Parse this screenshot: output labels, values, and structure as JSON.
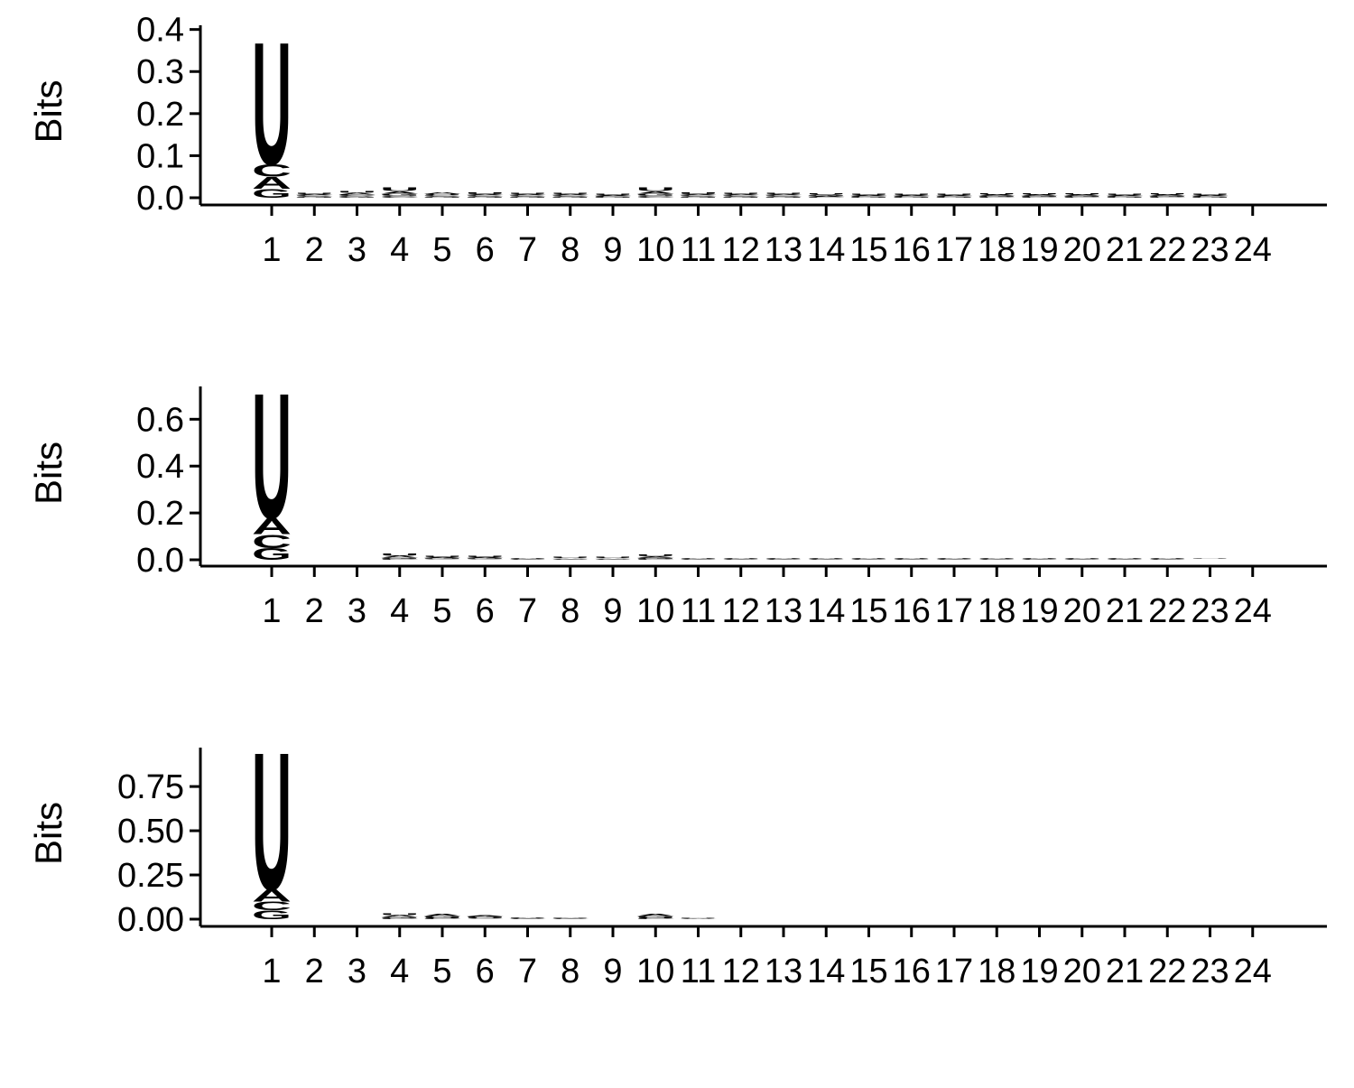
{
  "colors": {
    "A": "#109648",
    "C": "#255C99",
    "G": "#F7B32B",
    "U": "#D62839"
  },
  "chart_data": [
    {
      "type": "sequence-logo",
      "ylabel": "Bits",
      "ylim": [
        0,
        0.41
      ],
      "yticks": [
        0.0,
        0.1,
        0.2,
        0.3,
        0.4
      ],
      "ytick_labels": [
        "0.0",
        "0.1",
        "0.2",
        "0.3",
        "0.4"
      ],
      "positions": [
        "1",
        "2",
        "3",
        "4",
        "5",
        "6",
        "7",
        "8",
        "9",
        "10",
        "11",
        "12",
        "13",
        "14",
        "15",
        "16",
        "17",
        "18",
        "19",
        "20",
        "21",
        "22",
        "23",
        "24"
      ],
      "heights": [
        {
          "G": 0.022,
          "C": 0.03,
          "A": 0.028,
          "U": 0.3
        },
        {
          "G": 0.003,
          "C": 0.003,
          "A": 0.003,
          "U": 0.003
        },
        {
          "G": 0.004,
          "C": 0.004,
          "A": 0.004,
          "U": 0.004
        },
        {
          "G": 0.006,
          "C": 0.004,
          "A": 0.006,
          "U": 0.008
        },
        {
          "G": 0.003,
          "C": 0.003,
          "A": 0.004,
          "U": 0.003
        },
        {
          "G": 0.003,
          "C": 0.003,
          "A": 0.003,
          "U": 0.004
        },
        {
          "G": 0.003,
          "C": 0.003,
          "A": 0.003,
          "U": 0.003
        },
        {
          "G": 0.003,
          "C": 0.003,
          "A": 0.003,
          "U": 0.003
        },
        {
          "G": 0.002,
          "C": 0.002,
          "A": 0.002,
          "U": 0.002
        },
        {
          "G": 0.006,
          "C": 0.004,
          "A": 0.006,
          "U": 0.008
        },
        {
          "G": 0.003,
          "C": 0.003,
          "A": 0.003,
          "U": 0.004
        },
        {
          "G": 0.003,
          "C": 0.003,
          "A": 0.003,
          "U": 0.003
        },
        {
          "G": 0.003,
          "C": 0.003,
          "A": 0.003,
          "U": 0.003
        },
        {
          "G": 0.003,
          "C": 0.002,
          "A": 0.002,
          "U": 0.003
        },
        {
          "G": 0.002,
          "C": 0.002,
          "A": 0.002,
          "U": 0.002
        },
        {
          "G": 0.002,
          "C": 0.002,
          "A": 0.002,
          "U": 0.003
        },
        {
          "G": 0.002,
          "C": 0.002,
          "A": 0.002,
          "U": 0.003
        },
        {
          "G": 0.003,
          "C": 0.002,
          "A": 0.003,
          "U": 0.003
        },
        {
          "G": 0.003,
          "C": 0.002,
          "A": 0.003,
          "U": 0.003
        },
        {
          "G": 0.003,
          "C": 0.002,
          "A": 0.003,
          "U": 0.003
        },
        {
          "G": 0.002,
          "C": 0.002,
          "A": 0.002,
          "U": 0.003
        },
        {
          "G": 0.003,
          "C": 0.002,
          "A": 0.003,
          "U": 0.003
        },
        {
          "G": 0.002,
          "C": 0.002,
          "A": 0.002,
          "U": 0.002
        },
        {
          "G": 0.0,
          "C": 0.0,
          "A": 0.0,
          "U": 0.0
        }
      ]
    },
    {
      "type": "sequence-logo",
      "ylabel": "Bits",
      "ylim": [
        0,
        0.74
      ],
      "yticks": [
        0.0,
        0.2,
        0.4,
        0.6
      ],
      "ytick_labels": [
        "0.0",
        "0.2",
        "0.4",
        "0.6"
      ],
      "positions": [
        "1",
        "2",
        "3",
        "4",
        "5",
        "6",
        "7",
        "8",
        "9",
        "10",
        "11",
        "12",
        "13",
        "14",
        "15",
        "16",
        "17",
        "18",
        "19",
        "20",
        "21",
        "22",
        "23",
        "24"
      ],
      "heights": [
        {
          "G": 0.05,
          "C": 0.06,
          "A": 0.07,
          "U": 0.55
        },
        {
          "G": 0.0,
          "C": 0.0,
          "A": 0.0,
          "U": 0.0
        },
        {
          "G": 0.001,
          "C": 0.001,
          "A": 0.001,
          "U": 0.001
        },
        {
          "G": 0.006,
          "C": 0.004,
          "A": 0.008,
          "U": 0.01
        },
        {
          "G": 0.004,
          "C": 0.003,
          "A": 0.005,
          "U": 0.005
        },
        {
          "G": 0.004,
          "C": 0.003,
          "A": 0.004,
          "U": 0.005
        },
        {
          "G": 0.002,
          "C": 0.002,
          "A": 0.002,
          "U": 0.003
        },
        {
          "G": 0.003,
          "C": 0.002,
          "A": 0.003,
          "U": 0.004
        },
        {
          "G": 0.003,
          "C": 0.002,
          "A": 0.003,
          "U": 0.004
        },
        {
          "G": 0.005,
          "C": 0.004,
          "A": 0.006,
          "U": 0.008
        },
        {
          "G": 0.002,
          "C": 0.002,
          "A": 0.002,
          "U": 0.003
        },
        {
          "G": 0.002,
          "C": 0.002,
          "A": 0.002,
          "U": 0.003
        },
        {
          "G": 0.002,
          "C": 0.002,
          "A": 0.002,
          "U": 0.002
        },
        {
          "G": 0.002,
          "C": 0.002,
          "A": 0.002,
          "U": 0.002
        },
        {
          "G": 0.002,
          "C": 0.002,
          "A": 0.002,
          "U": 0.002
        },
        {
          "G": 0.002,
          "C": 0.002,
          "A": 0.002,
          "U": 0.002
        },
        {
          "G": 0.002,
          "C": 0.002,
          "A": 0.002,
          "U": 0.003
        },
        {
          "G": 0.002,
          "C": 0.002,
          "A": 0.002,
          "U": 0.003
        },
        {
          "G": 0.002,
          "C": 0.002,
          "A": 0.002,
          "U": 0.003
        },
        {
          "G": 0.002,
          "C": 0.002,
          "A": 0.002,
          "U": 0.003
        },
        {
          "G": 0.002,
          "C": 0.002,
          "A": 0.002,
          "U": 0.003
        },
        {
          "G": 0.002,
          "C": 0.002,
          "A": 0.002,
          "U": 0.003
        },
        {
          "G": 0.001,
          "C": 0.001,
          "A": 0.001,
          "U": 0.002
        },
        {
          "G": 0.0,
          "C": 0.0,
          "A": 0.0,
          "U": 0.0
        }
      ]
    },
    {
      "type": "sequence-logo",
      "ylabel": "Bits",
      "ylim": [
        0,
        0.97
      ],
      "yticks": [
        0.0,
        0.25,
        0.5,
        0.75
      ],
      "ytick_labels": [
        "0.00",
        "0.25",
        "0.50",
        "0.75"
      ],
      "positions": [
        "1",
        "2",
        "3",
        "4",
        "5",
        "6",
        "7",
        "8",
        "9",
        "10",
        "11",
        "12",
        "13",
        "14",
        "15",
        "16",
        "17",
        "18",
        "19",
        "20",
        "21",
        "22",
        "23",
        "24"
      ],
      "heights": [
        {
          "G": 0.05,
          "C": 0.05,
          "A": 0.07,
          "U": 0.8
        },
        {
          "G": 0.0,
          "C": 0.0,
          "A": 0.0,
          "U": 0.0
        },
        {
          "G": 0.0,
          "C": 0.0,
          "A": 0.0,
          "U": 0.0
        },
        {
          "G": 0.008,
          "C": 0.006,
          "A": 0.01,
          "U": 0.01
        },
        {
          "G": 0.008,
          "C": 0.005,
          "A": 0.012,
          "U": 0.006
        },
        {
          "G": 0.006,
          "C": 0.004,
          "A": 0.008,
          "U": 0.005
        },
        {
          "G": 0.003,
          "C": 0.002,
          "A": 0.004,
          "U": 0.003
        },
        {
          "G": 0.002,
          "C": 0.002,
          "A": 0.002,
          "U": 0.002
        },
        {
          "G": 0.001,
          "C": 0.001,
          "A": 0.001,
          "U": 0.001
        },
        {
          "G": 0.008,
          "C": 0.005,
          "A": 0.012,
          "U": 0.006
        },
        {
          "G": 0.002,
          "C": 0.001,
          "A": 0.002,
          "U": 0.002
        },
        {
          "G": 0.001,
          "C": 0.001,
          "A": 0.001,
          "U": 0.001
        },
        {
          "G": 0.001,
          "C": 0.001,
          "A": 0.001,
          "U": 0.001
        },
        {
          "G": 0.0,
          "C": 0.0,
          "A": 0.0,
          "U": 0.001
        },
        {
          "G": 0.0,
          "C": 0.0,
          "A": 0.0,
          "U": 0.0
        },
        {
          "G": 0.0,
          "C": 0.0,
          "A": 0.0,
          "U": 0.0
        },
        {
          "G": 0.0,
          "C": 0.0,
          "A": 0.0,
          "U": 0.0
        },
        {
          "G": 0.0,
          "C": 0.0,
          "A": 0.0,
          "U": 0.0
        },
        {
          "G": 0.0,
          "C": 0.0,
          "A": 0.0,
          "U": 0.0
        },
        {
          "G": 0.0,
          "C": 0.0,
          "A": 0.0,
          "U": 0.0
        },
        {
          "G": 0.0,
          "C": 0.0,
          "A": 0.0,
          "U": 0.0
        },
        {
          "G": 0.0,
          "C": 0.0,
          "A": 0.0,
          "U": 0.001
        },
        {
          "G": 0.0,
          "C": 0.0,
          "A": 0.0,
          "U": 0.0
        },
        {
          "G": 0.0,
          "C": 0.0,
          "A": 0.0,
          "U": 0.0
        }
      ]
    }
  ]
}
